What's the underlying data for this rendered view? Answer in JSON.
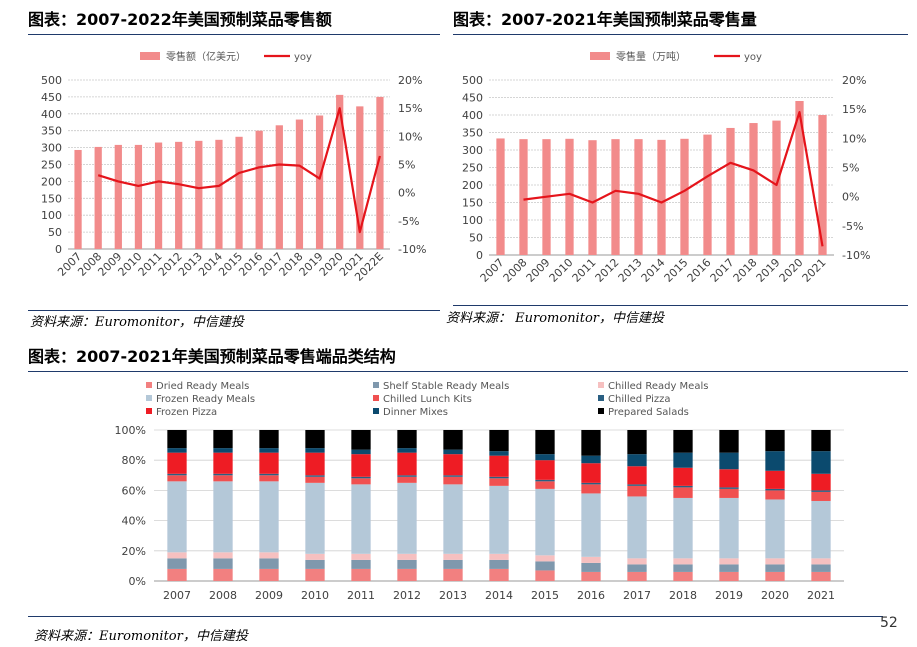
{
  "colors": {
    "bar": "#f28b8b",
    "yoy_line": "#e5141b",
    "rule": "#1f3a6b"
  },
  "page_number": "52",
  "charts": {
    "sales_value": {
      "title": "图表：2007-2022年美国预制菜品零售额",
      "source": "资料来源：Euromonitor，中信建投"
    },
    "sales_volume": {
      "title": "图表：2007-2021年美国预制菜品零售量",
      "source": "资料来源：  Euromonitor，中信建投"
    },
    "structure": {
      "title": "图表：2007-2021年美国预制菜品零售端品类结构",
      "source": "资料来源：Euromonitor，中信建投"
    }
  },
  "chart_data": [
    {
      "type": "bar",
      "categories": [
        "2007",
        "2008",
        "2009",
        "2010",
        "2011",
        "2012",
        "2013",
        "2014",
        "2015",
        "2016",
        "2017",
        "2018",
        "2019",
        "2020",
        "2021",
        "2022E"
      ],
      "series": [
        {
          "name": "零售额（亿美元）",
          "type": "bar",
          "axis": "left",
          "values": [
            293,
            302,
            308,
            308,
            315,
            317,
            320,
            323,
            332,
            350,
            366,
            383,
            395,
            456,
            422,
            450
          ]
        },
        {
          "name": "yoy",
          "type": "line",
          "axis": "right",
          "values": [
            null,
            3.1,
            2.0,
            1.2,
            2.0,
            1.5,
            0.8,
            1.2,
            3.5,
            4.5,
            5.0,
            4.8,
            2.5,
            15.0,
            -7.0,
            6.5
          ]
        }
      ],
      "ylim": [
        0,
        500
      ],
      "yticks": [
        "0",
        "50",
        "100",
        "150",
        "200",
        "250",
        "300",
        "350",
        "400",
        "450",
        "500"
      ],
      "y2lim": [
        -10,
        20
      ],
      "y2ticks": [
        "-10%",
        "-5%",
        "0%",
        "5%",
        "10%",
        "15%",
        "20%"
      ],
      "legend": "top",
      "grid": true
    },
    {
      "type": "bar",
      "categories": [
        "2007",
        "2008",
        "2009",
        "2010",
        "2011",
        "2012",
        "2013",
        "2014",
        "2015",
        "2016",
        "2017",
        "2018",
        "2019",
        "2020",
        "2021"
      ],
      "series": [
        {
          "name": "零售量（万吨）",
          "type": "bar",
          "axis": "left",
          "values": [
            333,
            331,
            331,
            332,
            328,
            331,
            331,
            329,
            332,
            344,
            363,
            377,
            384,
            440,
            400
          ]
        },
        {
          "name": "yoy",
          "type": "line",
          "axis": "right",
          "values": [
            null,
            -0.5,
            0.0,
            0.5,
            -1.0,
            1.0,
            0.5,
            -1.0,
            1.0,
            3.5,
            5.8,
            4.5,
            2.0,
            14.5,
            -8.5
          ]
        }
      ],
      "ylim": [
        0,
        500
      ],
      "yticks": [
        "0",
        "50",
        "100",
        "150",
        "200",
        "250",
        "300",
        "350",
        "400",
        "450",
        "500"
      ],
      "y2lim": [
        -10,
        20
      ],
      "y2ticks": [
        "-10%",
        "-5%",
        "0%",
        "5%",
        "10%",
        "15%",
        "20%"
      ],
      "legend": "top",
      "grid": true
    },
    {
      "type": "bar",
      "stacked": true,
      "categories": [
        "2007",
        "2008",
        "2009",
        "2010",
        "2011",
        "2012",
        "2013",
        "2014",
        "2015",
        "2016",
        "2017",
        "2018",
        "2019",
        "2020",
        "2021"
      ],
      "ylim": [
        0,
        100
      ],
      "yticks": [
        "0%",
        "20%",
        "40%",
        "60%",
        "80%",
        "100%"
      ],
      "legend": "top",
      "grid": true,
      "series": [
        {
          "name": "Dried Ready Meals",
          "color": "#f28080",
          "values": [
            8,
            8,
            8,
            8,
            8,
            8,
            8,
            8,
            7,
            6,
            6,
            6,
            6,
            6,
            6
          ]
        },
        {
          "name": "Shelf Stable Ready Meals",
          "color": "#7f98ad",
          "values": [
            7,
            7,
            7,
            6,
            6,
            6,
            6,
            6,
            6,
            6,
            5,
            5,
            5,
            5,
            5
          ]
        },
        {
          "name": "Chilled Ready Meals",
          "color": "#f6c0c0",
          "values": [
            4,
            4,
            4,
            4,
            4,
            4,
            4,
            4,
            4,
            4,
            4,
            4,
            4,
            4,
            4
          ]
        },
        {
          "name": "Frozen Ready Meals",
          "color": "#b4c8d8",
          "values": [
            47,
            47,
            47,
            47,
            46,
            47,
            46,
            45,
            44,
            42,
            41,
            40,
            40,
            39,
            38
          ]
        },
        {
          "name": "Chilled Lunch Kits",
          "color": "#f05050",
          "values": [
            4,
            4,
            4,
            4,
            4,
            4,
            5,
            5,
            5,
            6,
            7,
            7,
            6,
            6,
            6
          ]
        },
        {
          "name": "Chilled Pizza",
          "color": "#2a5f82",
          "values": [
            1,
            1,
            1,
            1,
            1,
            1,
            1,
            1,
            1,
            1,
            1,
            1,
            1,
            1,
            1
          ]
        },
        {
          "name": "Frozen Pizza",
          "color": "#ee1c24",
          "values": [
            14,
            14,
            14,
            15,
            15,
            15,
            14,
            14,
            13,
            13,
            12,
            12,
            12,
            12,
            11
          ]
        },
        {
          "name": "Dinner Mixes",
          "color": "#0b4a6e",
          "values": [
            3,
            3,
            3,
            3,
            3,
            3,
            3,
            3,
            4,
            5,
            8,
            10,
            11,
            13,
            15
          ]
        },
        {
          "name": "Prepared Salads",
          "color": "#000000",
          "values": [
            12,
            12,
            12,
            12,
            13,
            12,
            13,
            14,
            16,
            17,
            16,
            15,
            15,
            14,
            14
          ]
        }
      ]
    }
  ]
}
